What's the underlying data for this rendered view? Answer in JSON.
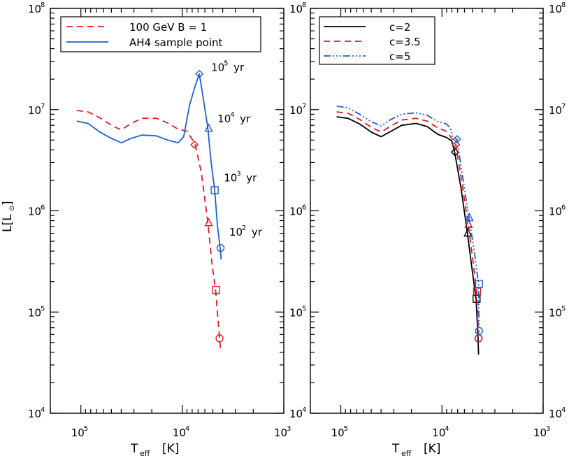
{
  "chart_data": [
    {
      "type": "line",
      "panel": "left",
      "xlabel": "T",
      "xlabel_sub": "eff",
      "xlabel_unit": "[K]",
      "ylabel": "L[L",
      "ylabel_sub": "⊙",
      "ylabel_end": "]",
      "xscale": "log",
      "yscale": "log",
      "x_reversed": true,
      "xlim": [
        200000,
        1000
      ],
      "ylim": [
        10000,
        100000000
      ],
      "x_ticks": [
        {
          "base": "10",
          "exp": "5",
          "v": 100000
        },
        {
          "base": "10",
          "exp": "4",
          "v": 10000
        },
        {
          "base": "10",
          "exp": "3",
          "v": 1000
        }
      ],
      "y_ticks_left": [
        {
          "base": "10",
          "exp": "8",
          "v": 100000000
        },
        {
          "base": "10",
          "exp": "7",
          "v": 10000000
        },
        {
          "base": "10",
          "exp": "6",
          "v": 1000000
        },
        {
          "base": "10",
          "exp": "5",
          "v": 100000
        },
        {
          "base": "10",
          "exp": "4",
          "v": 10000
        }
      ],
      "y_ticks_right": [
        {
          "base": "10",
          "exp": "8",
          "v": 100000000
        },
        {
          "base": "10",
          "exp": "7",
          "v": 10000000
        },
        {
          "base": "10",
          "exp": "6",
          "v": 1000000
        },
        {
          "base": "10",
          "exp": "5",
          "v": 100000
        },
        {
          "base": "10",
          "exp": "4",
          "v": 10000
        }
      ],
      "legend": [
        {
          "label": "100 GeV B = 1",
          "color": "#e41a1c",
          "dash": "9,6"
        },
        {
          "label": "AH4 sample point",
          "color": "#1f5fd1",
          "dash": ""
        }
      ],
      "series": [
        {
          "name": "100 GeV B = 1",
          "color": "#e41a1c",
          "dash": "9,6",
          "points": [
            [
              110000,
              9800000
            ],
            [
              85000,
              9500000
            ],
            [
              65000,
              8300000
            ],
            [
              50000,
              7000000
            ],
            [
              40000,
              6300000
            ],
            [
              32000,
              7300000
            ],
            [
              25000,
              8200000
            ],
            [
              18000,
              8200000
            ],
            [
              14000,
              7400000
            ],
            [
              11000,
              6400000
            ],
            [
              9000,
              6100000
            ],
            [
              7500,
              4600000
            ],
            [
              6500,
              2400000
            ],
            [
              5600,
              760000
            ],
            [
              5100,
              300000
            ],
            [
              4700,
              165000
            ],
            [
              4300,
              55000
            ],
            [
              4200,
              43000
            ]
          ],
          "markers": [
            {
              "x": 7600,
              "y": 4500000,
              "shape": "diamond"
            },
            {
              "x": 5500,
              "y": 760000,
              "shape": "triangle"
            },
            {
              "x": 4650,
              "y": 165000,
              "shape": "square"
            },
            {
              "x": 4300,
              "y": 55000,
              "shape": "circle"
            }
          ]
        },
        {
          "name": "AH4 sample point",
          "color": "#1f5fd1",
          "dash": "",
          "points": [
            [
              110000,
              7700000
            ],
            [
              85000,
              7300000
            ],
            [
              65000,
              6000000
            ],
            [
              50000,
              5200000
            ],
            [
              40000,
              4700000
            ],
            [
              32000,
              5200000
            ],
            [
              25000,
              5600000
            ],
            [
              18000,
              5500000
            ],
            [
              14000,
              5000000
            ],
            [
              11000,
              4700000
            ],
            [
              9700,
              5400000
            ],
            [
              8500,
              11000000
            ],
            [
              7500,
              17000000
            ],
            [
              6800,
              22500000
            ],
            [
              6300,
              14000000
            ],
            [
              5600,
              6500000
            ],
            [
              5200,
              3000000
            ],
            [
              4800,
              1600000
            ],
            [
              4500,
              700000
            ],
            [
              4200,
              400000
            ],
            [
              4150,
              330000
            ]
          ],
          "markers": [
            {
              "x": 6800,
              "y": 22500000,
              "shape": "diamond"
            },
            {
              "x": 5500,
              "y": 6500000,
              "shape": "triangle"
            },
            {
              "x": 4800,
              "y": 1600000,
              "shape": "square"
            },
            {
              "x": 4200,
              "y": 430000,
              "shape": "circle"
            }
          ]
        }
      ],
      "annotations": [
        {
          "base": "10",
          "exp": "5",
          "unit": "yr",
          "x": 5200,
          "y": 24000000
        },
        {
          "base": "10",
          "exp": "4",
          "unit": "yr",
          "x": 4500,
          "y": 7500000
        },
        {
          "base": "10",
          "exp": "3",
          "unit": "yr",
          "x": 3900,
          "y": 1950000
        },
        {
          "base": "10",
          "exp": "2",
          "unit": "yr",
          "x": 3450,
          "y": 570000
        }
      ]
    },
    {
      "type": "line",
      "panel": "right",
      "xlabel": "T",
      "xlabel_sub": "eff",
      "xlabel_unit": "[K]",
      "xscale": "log",
      "yscale": "log",
      "x_reversed": true,
      "xlim": [
        200000,
        1000
      ],
      "ylim": [
        10000,
        100000000
      ],
      "x_ticks": [
        {
          "base": "10",
          "exp": "5",
          "v": 100000
        },
        {
          "base": "10",
          "exp": "4",
          "v": 10000
        },
        {
          "base": "10",
          "exp": "3",
          "v": 1000
        }
      ],
      "y_ticks_right": [
        {
          "base": "10",
          "exp": "8",
          "v": 100000000
        },
        {
          "base": "10",
          "exp": "7",
          "v": 10000000
        },
        {
          "base": "10",
          "exp": "6",
          "v": 1000000
        },
        {
          "base": "10",
          "exp": "5",
          "v": 100000
        },
        {
          "base": "10",
          "exp": "4",
          "v": 10000
        }
      ],
      "legend": [
        {
          "label": "c=2",
          "color": "#000000",
          "dash": ""
        },
        {
          "label": "c=3.5",
          "color": "#e41a1c",
          "dash": "9,6"
        },
        {
          "label": "c=5",
          "color": "#1f5fd1",
          "dash": "10,3,2,3,2,3,2,3"
        }
      ],
      "series": [
        {
          "name": "c=2",
          "color": "#000000",
          "dash": "",
          "points": [
            [
              110000,
              8500000
            ],
            [
              85000,
              8200000
            ],
            [
              65000,
              7200000
            ],
            [
              50000,
              6000000
            ],
            [
              40000,
              5400000
            ],
            [
              32000,
              6100000
            ],
            [
              25000,
              7000000
            ],
            [
              18000,
              7300000
            ],
            [
              14000,
              6800000
            ],
            [
              11000,
              5700000
            ],
            [
              9000,
              5300000
            ],
            [
              8000,
              4900000
            ],
            [
              7500,
              3800000
            ],
            [
              6500,
              1700000
            ],
            [
              5600,
              600000
            ],
            [
              5000,
              250000
            ],
            [
              4600,
              135000
            ],
            [
              4400,
              55000
            ],
            [
              4350,
              38000
            ]
          ],
          "markers": [
            {
              "x": 7450,
              "y": 3800000,
              "shape": "diamond"
            },
            {
              "x": 5550,
              "y": 600000,
              "shape": "triangle"
            },
            {
              "x": 4550,
              "y": 135000,
              "shape": "square"
            },
            {
              "x": 4350,
              "y": 55000,
              "shape": "circle"
            }
          ]
        },
        {
          "name": "c=3.5",
          "color": "#e41a1c",
          "dash": "9,6",
          "points": [
            [
              110000,
              9500000
            ],
            [
              85000,
              9200000
            ],
            [
              65000,
              8000000
            ],
            [
              50000,
              6700000
            ],
            [
              40000,
              6000000
            ],
            [
              32000,
              6900000
            ],
            [
              25000,
              7900000
            ],
            [
              18000,
              8200000
            ],
            [
              14000,
              7700000
            ],
            [
              11000,
              6600000
            ],
            [
              9000,
              6100000
            ],
            [
              8000,
              5200000
            ],
            [
              7300,
              4500000
            ],
            [
              6400,
              2000000
            ],
            [
              5500,
              730000
            ],
            [
              4900,
              300000
            ],
            [
              4550,
              160000
            ],
            [
              4350,
              60000
            ]
          ],
          "markers": [
            {
              "x": 7250,
              "y": 4500000,
              "shape": "diamond"
            },
            {
              "x": 5450,
              "y": 730000,
              "shape": "triangle"
            },
            {
              "x": 4500,
              "y": 160000,
              "shape": "square"
            },
            {
              "x": 4350,
              "y": 55000,
              "shape": "circle"
            }
          ]
        },
        {
          "name": "c=5",
          "color": "#1f5fd1",
          "dash": "10,3,2,3,2,3,2,3",
          "points": [
            [
              110000,
              10800000
            ],
            [
              85000,
              10400000
            ],
            [
              65000,
              9000000
            ],
            [
              50000,
              7600000
            ],
            [
              40000,
              6900000
            ],
            [
              32000,
              8000000
            ],
            [
              25000,
              9000000
            ],
            [
              18000,
              9300000
            ],
            [
              14000,
              8800000
            ],
            [
              11000,
              7600000
            ],
            [
              9000,
              7200000
            ],
            [
              8200,
              6500000
            ],
            [
              7800,
              5300000
            ],
            [
              7100,
              5100000
            ],
            [
              6300,
              2300000
            ],
            [
              5400,
              850000
            ],
            [
              4800,
              400000
            ],
            [
              4350,
              190000
            ],
            [
              4300,
              65000
            ]
          ],
          "markers": [
            {
              "x": 7100,
              "y": 5100000,
              "shape": "diamond"
            },
            {
              "x": 5350,
              "y": 850000,
              "shape": "triangle"
            },
            {
              "x": 4300,
              "y": 190000,
              "shape": "square"
            },
            {
              "x": 4300,
              "y": 65000,
              "shape": "circle"
            }
          ]
        }
      ],
      "annotations": []
    }
  ]
}
